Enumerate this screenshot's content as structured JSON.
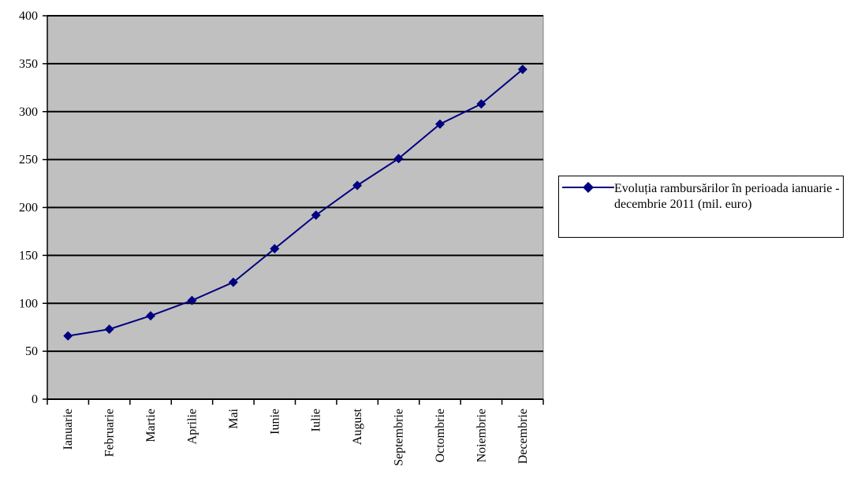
{
  "chart_data": {
    "type": "line",
    "categories": [
      "Ianuarie",
      "Februarie",
      "Martie",
      "Aprilie",
      "Mai",
      "Iunie",
      "Iulie",
      "August",
      "Septembrie",
      "Octombrie",
      "Noiembrie",
      "Decembrie"
    ],
    "series": [
      {
        "name": "Evoluția rambursărilor în perioada ianuarie - decembrie 2011 (mil. euro)",
        "values": [
          66,
          73,
          87,
          103,
          122,
          157,
          192,
          223,
          251,
          287,
          308,
          344
        ],
        "color": "#000080",
        "marker": "diamond"
      }
    ],
    "ylim": [
      0,
      400
    ],
    "yticks": [
      0,
      50,
      100,
      150,
      200,
      250,
      300,
      350,
      400
    ],
    "grid": true,
    "plot_background": "#c0c0c0",
    "legend_position": "right"
  }
}
